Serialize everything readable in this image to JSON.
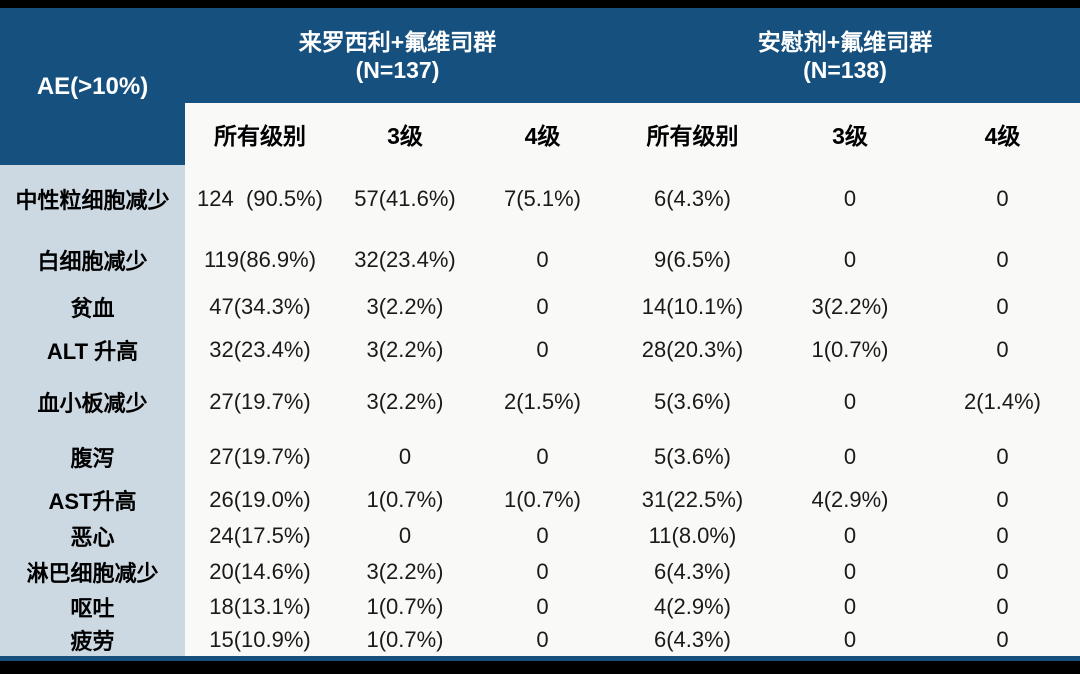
{
  "colors": {
    "header_blue": "#16507E",
    "label_column_bg": "#CCD8E2",
    "data_bg": "#F9F9F8",
    "frame_black": "#000000"
  },
  "chart_data": {
    "type": "table",
    "corner_label": "AE(>10%)",
    "column_groups": [
      {
        "label": "来罗西利+氟维司群",
        "n_label": "(N=137)"
      },
      {
        "label": "安慰剂+氟维司群",
        "n_label": "(N=138)"
      }
    ],
    "sub_headers": [
      "所有级别",
      "3级",
      "4级",
      "所有级别",
      "3级",
      "4级"
    ],
    "rows": [
      {
        "label": "中性粒细胞减少",
        "values": [
          "124  (90.5%)",
          "57(41.6%)",
          "7(5.1%)",
          "6(4.3%)",
          "0",
          "0"
        ]
      },
      {
        "label": "白细胞减少",
        "values": [
          "119(86.9%)",
          "32(23.4%)",
          "0",
          "9(6.5%)",
          "0",
          "0"
        ]
      },
      {
        "label": "贫血",
        "values": [
          "47(34.3%)",
          "3(2.2%)",
          "0",
          "14(10.1%)",
          "3(2.2%)",
          "0"
        ]
      },
      {
        "label": "ALT 升高",
        "values": [
          "32(23.4%)",
          "3(2.2%)",
          "0",
          "28(20.3%)",
          "1(0.7%)",
          "0"
        ]
      },
      {
        "label": "血小板减少",
        "values": [
          "27(19.7%)",
          "3(2.2%)",
          "2(1.5%)",
          "5(3.6%)",
          "0",
          "2(1.4%)"
        ]
      },
      {
        "label": "腹泻",
        "values": [
          "27(19.7%)",
          "0",
          "0",
          "5(3.6%)",
          "0",
          "0"
        ]
      },
      {
        "label": "AST升高",
        "values": [
          "26(19.0%)",
          "1(0.7%)",
          "1(0.7%)",
          "31(22.5%)",
          "4(2.9%)",
          "0"
        ]
      },
      {
        "label": "恶心",
        "values": [
          "24(17.5%)",
          "0",
          "0",
          "11(8.0%)",
          "0",
          "0"
        ]
      },
      {
        "label": "淋巴细胞减少",
        "values": [
          "20(14.6%)",
          "3(2.2%)",
          "0",
          "6(4.3%)",
          "0",
          "0"
        ]
      },
      {
        "label": "呕吐",
        "values": [
          "18(13.1%)",
          "1(0.7%)",
          "0",
          "4(2.9%)",
          "0",
          "0"
        ]
      },
      {
        "label": "疲劳",
        "values": [
          "15(10.9%)",
          "1(0.7%)",
          "0",
          "6(4.3%)",
          "0",
          "0"
        ]
      }
    ]
  }
}
